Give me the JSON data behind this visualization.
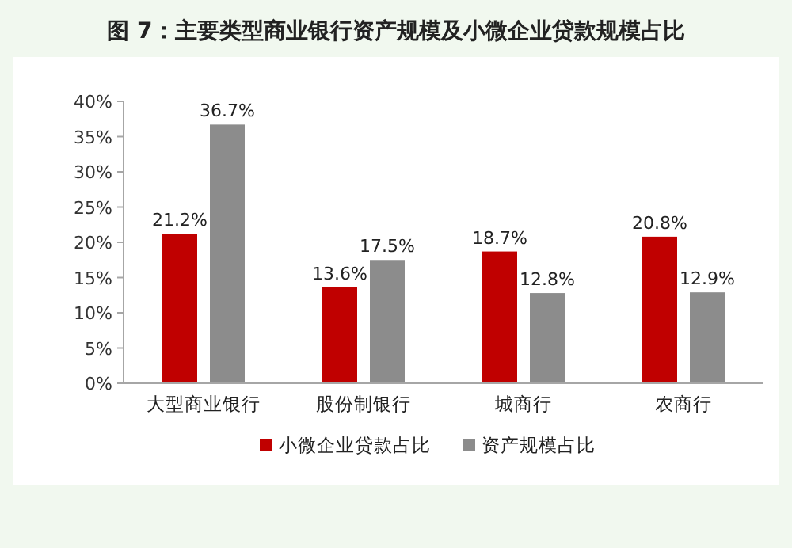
{
  "chart_data": {
    "type": "bar",
    "title": "图 7：主要类型商业银行资产规模及小微企业贷款规模占比",
    "categories": [
      "大型商业银行",
      "股份制银行",
      "城商行",
      "农商行"
    ],
    "series": [
      {
        "name": "小微企业贷款占比",
        "color": "#c00000",
        "values": [
          21.2,
          13.6,
          18.7,
          20.8
        ],
        "value_labels": [
          "21.2%",
          "13.6%",
          "18.7%",
          "20.8%"
        ]
      },
      {
        "name": "资产规模占比",
        "color": "#8c8c8c",
        "values": [
          36.7,
          17.5,
          12.8,
          12.9
        ],
        "value_labels": [
          "36.7%",
          "17.5%",
          "12.8%",
          "12.9%"
        ]
      }
    ],
    "ylim": [
      0,
      40
    ],
    "yticks": [
      {
        "value": 0,
        "label": "0%"
      },
      {
        "value": 5,
        "label": "5%"
      },
      {
        "value": 10,
        "label": "10%"
      },
      {
        "value": 15,
        "label": "15%"
      },
      {
        "value": 20,
        "label": "20%"
      },
      {
        "value": 25,
        "label": "25%"
      },
      {
        "value": 30,
        "label": "30%"
      },
      {
        "value": 35,
        "label": "35%"
      },
      {
        "value": 40,
        "label": "40%"
      }
    ],
    "grid": false,
    "legend": "bottom"
  }
}
